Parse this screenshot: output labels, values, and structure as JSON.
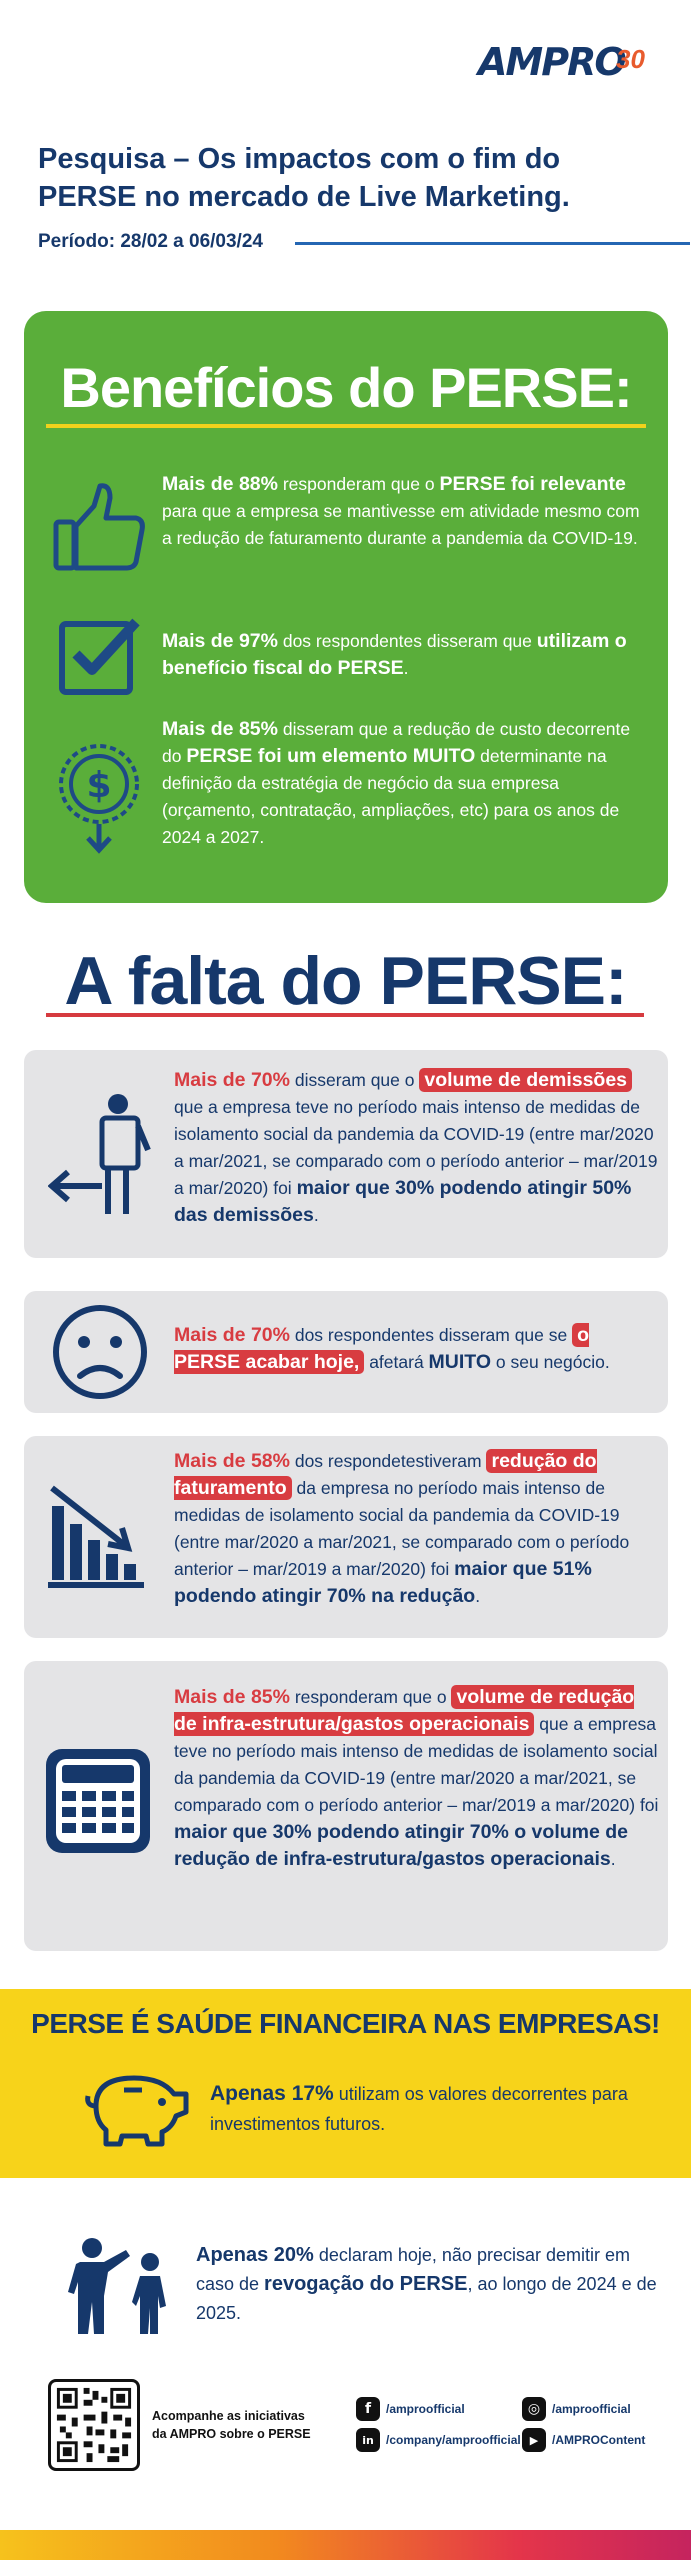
{
  "header": {
    "logo_text": "AMPRO",
    "logo_badge": "30",
    "title_line1": "Pesquisa – Os impactos com o fim do",
    "title_line2": "PERSE no mercado de Live Marketing.",
    "period": "Período: 28/02 a 06/03/24"
  },
  "beneficios": {
    "title": "Benefícios do PERSE:",
    "items": [
      {
        "icon": "thumbs-up-icon",
        "strong1": "Mais de 88%",
        "text1": " responderam que o ",
        "strong2": "PERSE foi relevante",
        "text2": " para que a empresa se mantivesse em atividade mesmo com a redução de faturamento durante a pandemia da COVID-19."
      },
      {
        "icon": "checkbox-icon",
        "strong1": "Mais de 97%",
        "text1": " dos respondentes disseram que ",
        "strong2": "utilizam o benefício fiscal do PERSE",
        "text2": "."
      },
      {
        "icon": "dollar-down-icon",
        "strong1": "Mais de 85%",
        "text1": " disseram que a redução de custo decorrente do ",
        "strong2": "PERSE foi um elemento MUITO",
        "text2": " determinante na definição da estratégia de negócio da sua empresa (orçamento, contratação, ampliações, etc) para os anos de 2024 a 2027."
      }
    ]
  },
  "falta": {
    "title": "A falta do PERSE:",
    "cards": [
      {
        "icon": "person-exit-icon",
        "red": "Mais de 70%",
        "text1": " disseram que o ",
        "highlight": "volume de demissões",
        "text2": " que a empresa teve no período mais intenso de medidas de isolamento social da pandemia da COVID-19 (entre mar/2020 a mar/2021, se comparado com o período anterior – mar/2019 a mar/2020) foi ",
        "strong": "maior que 30% podendo atingir 50% das demissões",
        "text3": "."
      },
      {
        "icon": "sad-face-icon",
        "red": "Mais de 70%",
        "text1": " dos respondentes disseram que se ",
        "highlight": "o PERSE acabar hoje,",
        "text2": " afetará ",
        "strong": "MUITO",
        "text3": " o seu negócio."
      },
      {
        "icon": "bar-chart-down-icon",
        "red": "Mais de 58%",
        "text1": " dos respondetestiveram ",
        "highlight": "redução do faturamento",
        "text2": " da empresa no período mais intenso de medidas de isolamento social da pandemia da COVID-19 (entre mar/2020 a mar/2021, se comparado com o período anterior – mar/2019 a mar/2020) foi ",
        "strong": "maior que 51% podendo atingir 70% na redução",
        "text3": "."
      },
      {
        "icon": "calculator-icon",
        "red": "Mais de 85%",
        "text1": " responderam que o ",
        "highlight": "volume de redução de infra-estrutura/gastos operacionais",
        "text2": " que a empresa teve no período mais intenso de medidas de isolamento social da pandemia da COVID-19 (entre mar/2020 a mar/2021, se comparado com o período anterior – mar/2019 a mar/2020) foi ",
        "strong": "maior que 30% podendo atingir 70% o volume de redução de infra-estrutura/gastos operacionais",
        "text3": "."
      }
    ]
  },
  "saude": {
    "title": "PERSE É SAÚDE FINANCEIRA NAS EMPRESAS!",
    "icon": "piggy-bank-icon",
    "strong": "Apenas 17%",
    "text": " utilizam os valores decorrentes para investimentos futuros."
  },
  "demitir": {
    "icon": "people-dismiss-icon",
    "strong1": "Apenas 20%",
    "text1": " declaram hoje, não precisar demitir em caso de ",
    "strong2": "revogação do PERSE",
    "text2": ", ao longo de 2024 e de 2025."
  },
  "footer": {
    "cta_line1": "Acompanhe as iniciativas",
    "cta_line2": "da AMPRO sobre o PERSE",
    "socials": [
      {
        "icon": "facebook-icon",
        "glyph": "f",
        "handle": "/amproofficial"
      },
      {
        "icon": "linkedin-icon",
        "glyph": "in",
        "handle": "/company/amproofficial"
      },
      {
        "icon": "instagram-icon",
        "glyph": "◎",
        "handle": "/amproofficial"
      },
      {
        "icon": "youtube-icon",
        "glyph": "▶",
        "handle": "/AMPROContent"
      }
    ]
  }
}
